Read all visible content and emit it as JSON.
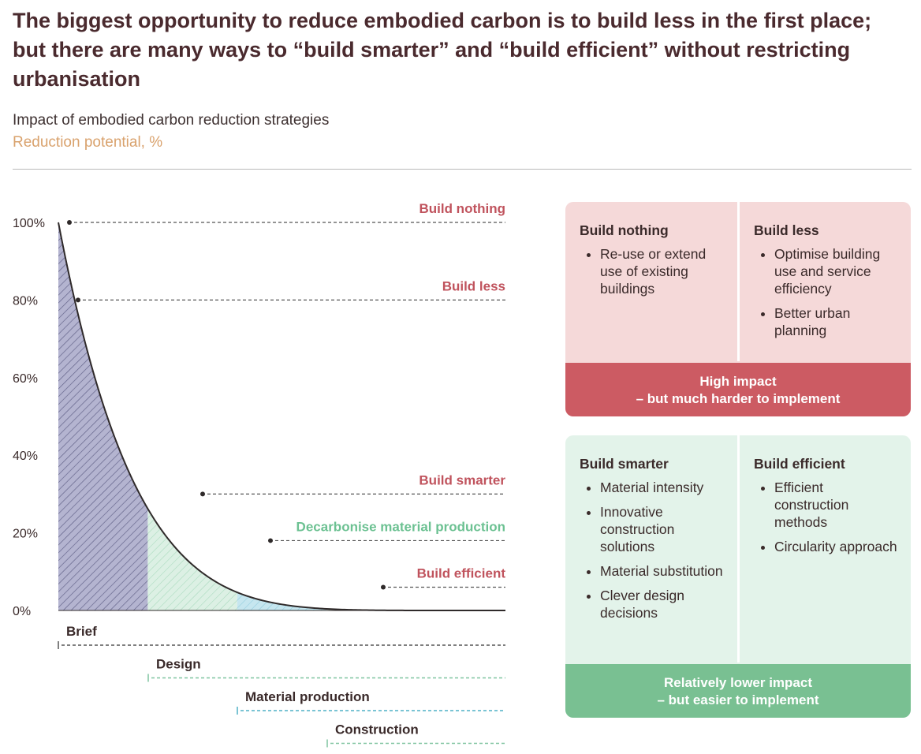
{
  "header": {
    "title": "The biggest opportunity to reduce embodied carbon is to build less in the first place; but there are many ways to “build smarter” and “build efficient” without restricting urbanisation",
    "subtitle": "Impact of embodied carbon reduction strategies",
    "unit": "Reduction potential, %"
  },
  "colors": {
    "build_nothing": "#c0535d",
    "decarbonise": "#6cc192",
    "high_impact": "#cc5b63",
    "lower_impact": "#79c092",
    "area_brief": "#b4b4d0",
    "area_design": "#dcf0e4",
    "area_material": "#c6e6ef",
    "area_construction": "#dff1e7"
  },
  "chart_data": {
    "type": "area",
    "ylim": [
      0,
      100
    ],
    "yticks": [
      "100%",
      "80%",
      "60%",
      "40%",
      "20%",
      "0%"
    ],
    "curve": {
      "description_points": [
        [
          0,
          100
        ],
        [
          0.5,
          80
        ],
        [
          2,
          40
        ],
        [
          3,
          30
        ],
        [
          4,
          19
        ],
        [
          5,
          12
        ],
        [
          6,
          6
        ],
        [
          7,
          3
        ],
        [
          8,
          1
        ],
        [
          10,
          0
        ]
      ]
    },
    "strategies": [
      {
        "label": "Build nothing",
        "value": 100,
        "color": "#c0535d"
      },
      {
        "label": "Build less",
        "value": 80,
        "color": "#c0535d"
      },
      {
        "label": "Build smarter",
        "value": 30,
        "color": "#c0535d"
      },
      {
        "label": "Decarbonise material production",
        "value": 18,
        "color": "#6cc192"
      },
      {
        "label": "Build efficient",
        "value": 6,
        "color": "#c0535d"
      }
    ],
    "phases": [
      {
        "label": "Brief",
        "color": "#555555"
      },
      {
        "label": "Design",
        "color": "#7fc4a0"
      },
      {
        "label": "Material production",
        "color": "#4fb0c6"
      },
      {
        "label": "Construction",
        "color": "#7fc4a0"
      }
    ]
  },
  "panels": {
    "high": {
      "left": {
        "title": "Build nothing",
        "items": [
          "Re-use or extend use of existing buildings"
        ]
      },
      "right": {
        "title": "Build less",
        "items": [
          "Optimise building use and service efficiency",
          "Better urban planning"
        ]
      },
      "banner": [
        "High impact",
        "– but much harder to implement"
      ]
    },
    "low": {
      "left": {
        "title": "Build smarter",
        "items": [
          "Material intensity",
          "Innovative construction solutions",
          "Material substitution",
          "Clever design decisions"
        ]
      },
      "right": {
        "title": "Build efficient",
        "items": [
          "Efficient construction methods",
          "Circularity approach"
        ]
      },
      "banner": [
        "Relatively lower impact",
        "– but easier to implement"
      ]
    }
  }
}
